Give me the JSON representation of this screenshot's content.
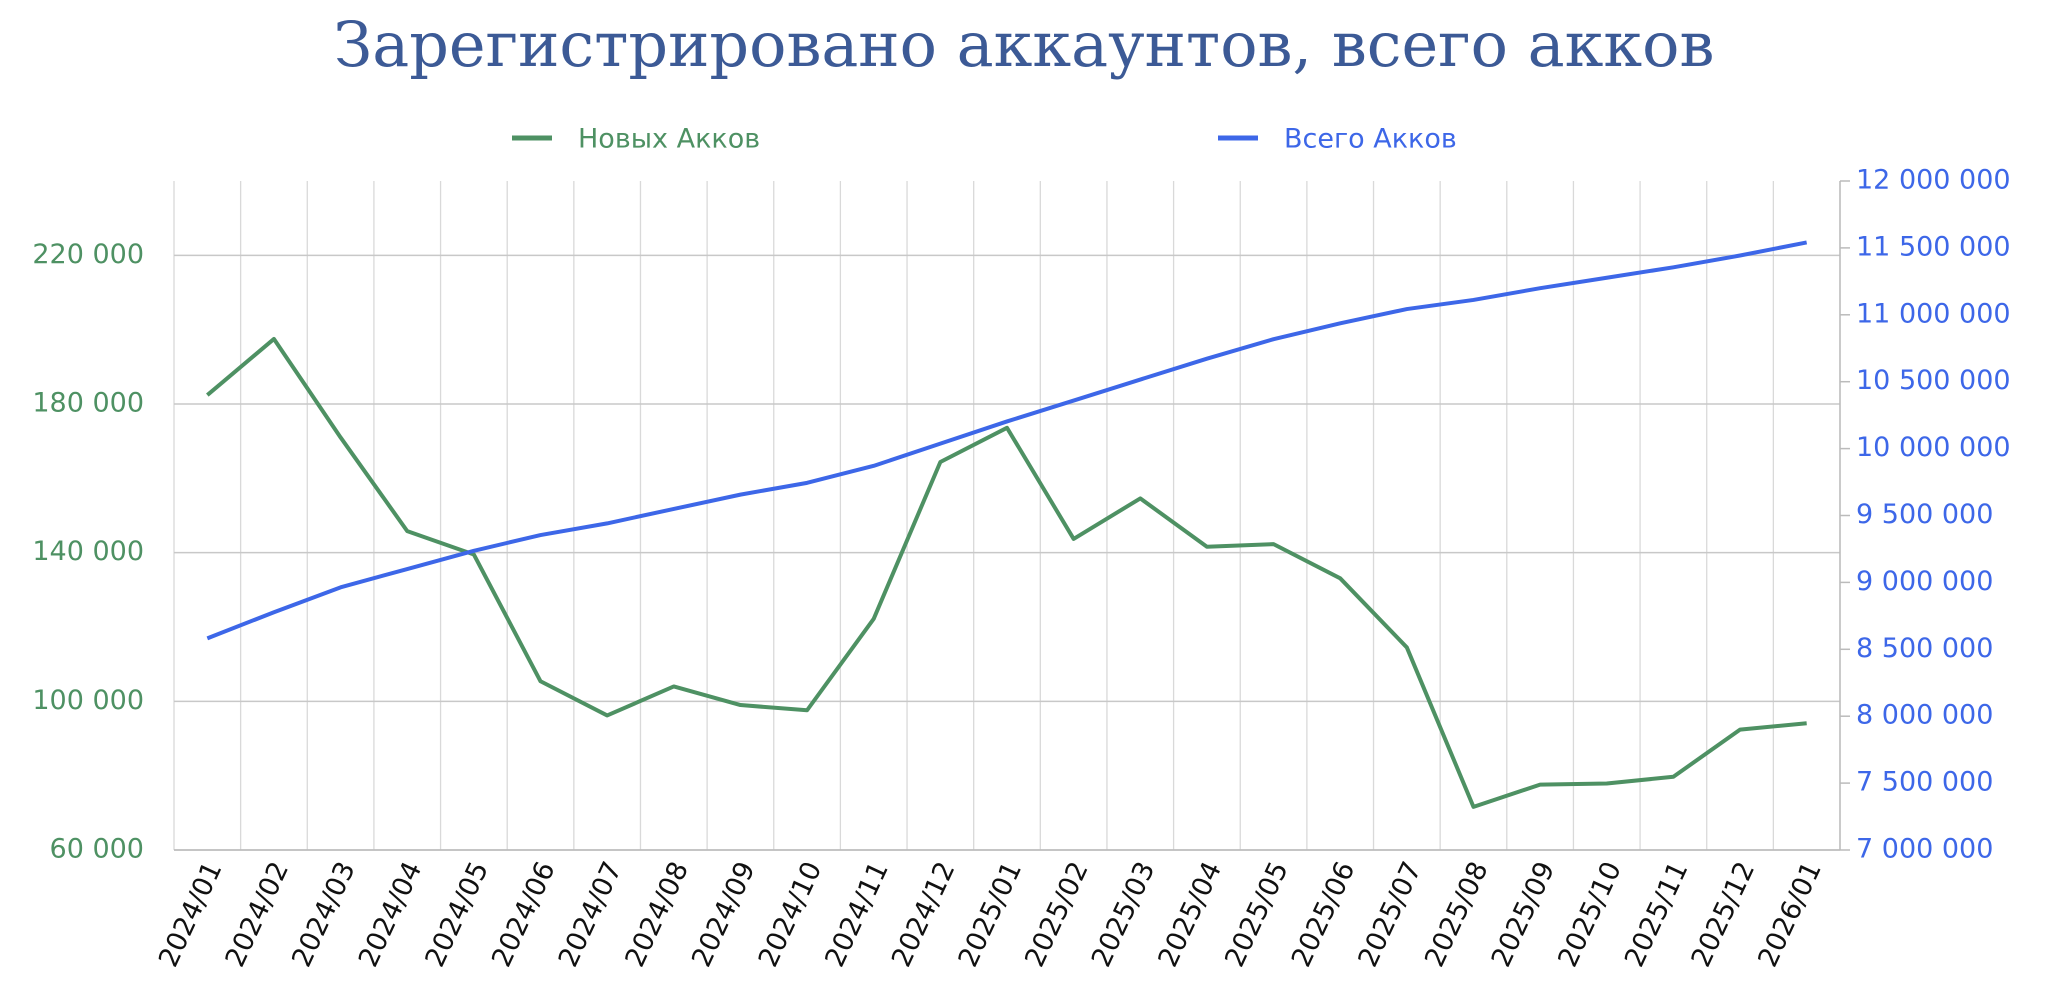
{
  "chart_data": {
    "type": "line",
    "title": "Зарегистрировано аккаунтов, всего акков",
    "categories": [
      "2024/01",
      "2024/02",
      "2024/03",
      "2024/04",
      "2024/05",
      "2024/06",
      "2024/07",
      "2024/08",
      "2024/09",
      "2024/10",
      "2024/11",
      "2024/12",
      "2025/01",
      "2025/02",
      "2025/03",
      "2025/04",
      "2025/05",
      "2025/06",
      "2025/07",
      "2025/08",
      "2025/09",
      "2025/10",
      "2025/11",
      "2025/12",
      "2026/01"
    ],
    "series": [
      {
        "name": "Новых Акков",
        "color": "#4e9163",
        "values": [
          182400,
          197500,
          171000,
          145800,
          139500,
          105400,
          96200,
          104000,
          99000,
          97600,
          122200,
          164400,
          173600,
          143700,
          154600,
          141600,
          142300,
          133100,
          114500,
          71600,
          77600,
          77900,
          79700,
          92400,
          94100
        ]
      },
      {
        "name": "Всего Акков",
        "color": "#3d67e8",
        "axis": "y2",
        "values": [
          8582000,
          8777000,
          8963000,
          9100000,
          9236000,
          9354000,
          9441000,
          9549000,
          9656000,
          9744000,
          9871000,
          10037000,
          10203000,
          10359000,
          10516000,
          10672000,
          10818000,
          10936000,
          11043000,
          11111000,
          11199000,
          11277000,
          11355000,
          11443000,
          11541000
        ]
      }
    ],
    "ylim": [
      60000,
      240000
    ],
    "yticks": [
      {
        "value": 60000,
        "label": "60 000"
      },
      {
        "value": 100000,
        "label": "100 000"
      },
      {
        "value": 140000,
        "label": "140 000"
      },
      {
        "value": 180000,
        "label": "180 000"
      },
      {
        "value": 220000,
        "label": "220 000"
      }
    ],
    "y2lim": [
      7000000,
      12000000
    ],
    "y2ticks": [
      {
        "value": 7000000,
        "label": "7 000 000"
      },
      {
        "value": 7500000,
        "label": "7 500 000"
      },
      {
        "value": 8000000,
        "label": "8 000 000"
      },
      {
        "value": 8500000,
        "label": "8 500 000"
      },
      {
        "value": 9000000,
        "label": "9 000 000"
      },
      {
        "value": 9500000,
        "label": "9 500 000"
      },
      {
        "value": 10000000,
        "label": "10 000 000"
      },
      {
        "value": 10500000,
        "label": "10 500 000"
      },
      {
        "value": 11000000,
        "label": "11 000 000"
      },
      {
        "value": 11500000,
        "label": "11 500 000"
      },
      {
        "value": 12000000,
        "label": "12 000 000"
      }
    ],
    "grid": true,
    "legend": "top"
  }
}
